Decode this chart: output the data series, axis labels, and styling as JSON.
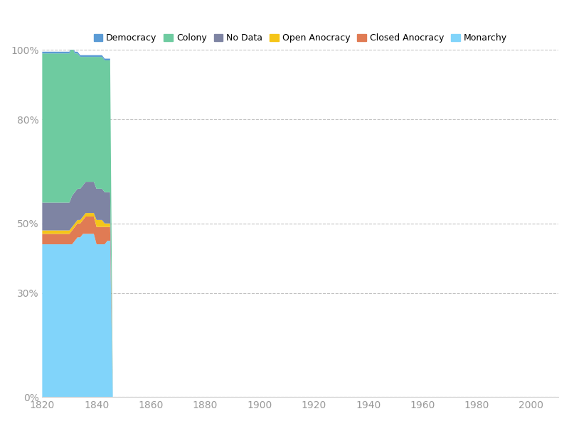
{
  "series": {
    "Democracy": {
      "color": "#5B9BD5",
      "values": [
        0.5,
        0.5,
        0.5,
        0.5,
        0.5,
        0.5,
        0.5,
        0.5,
        0.5,
        0.5,
        0.5,
        0.5,
        0.5,
        0.5,
        0.5,
        0.5,
        0.5,
        0.5,
        0.5,
        0.5,
        0.5,
        0.5,
        0.5,
        0.5,
        0.5,
        0.5
      ]
    },
    "Colony": {
      "color": "#6ECBA0",
      "values": [
        43,
        43,
        43,
        43,
        43,
        43,
        43,
        43,
        43,
        43,
        43,
        43,
        40,
        39,
        38,
        37,
        36,
        36,
        36,
        36,
        38,
        38,
        38,
        38,
        38,
        38
      ]
    },
    "No Data": {
      "color": "#7E84A3",
      "values": [
        8,
        8,
        8,
        8,
        8,
        8,
        8,
        8,
        8,
        8,
        8,
        9,
        9,
        9,
        9,
        9,
        9,
        9,
        9,
        9,
        9,
        9,
        9,
        9,
        9,
        9
      ]
    },
    "Open Anocracy": {
      "color": "#F5C518",
      "values": [
        1,
        1,
        1,
        1,
        1,
        1,
        1,
        1,
        1,
        1,
        1,
        1,
        1,
        1,
        1,
        1,
        1,
        1,
        1,
        1,
        2,
        2,
        2,
        1,
        1,
        1
      ]
    },
    "Closed Anocracy": {
      "color": "#E07B54",
      "values": [
        3,
        3,
        3,
        3,
        3,
        3,
        3,
        3,
        3,
        3,
        3,
        4,
        4,
        4,
        4,
        4,
        5,
        5,
        5,
        5,
        5,
        5,
        5,
        5,
        4,
        4
      ]
    },
    "Monarchy": {
      "color": "#81D4FA",
      "values": [
        44,
        44,
        44,
        44,
        44,
        44,
        44,
        44,
        44,
        44,
        44,
        44,
        45,
        46,
        46,
        47,
        47,
        47,
        47,
        47,
        44,
        44,
        44,
        44,
        45,
        45
      ]
    }
  },
  "stack_order": [
    "Monarchy",
    "Closed Anocracy",
    "Open Anocracy",
    "No Data",
    "Colony",
    "Democracy"
  ],
  "legend_order": [
    "Democracy",
    "Colony",
    "No Data",
    "Open Anocracy",
    "Closed Anocracy",
    "Monarchy"
  ],
  "year_start": 1820,
  "year_end_data": 1845,
  "xlim": [
    1820,
    2010
  ],
  "ylim": [
    0,
    100
  ],
  "yticks": [
    0,
    30,
    50,
    80,
    100
  ],
  "ytick_labels": [
    "0%",
    "30%",
    "50%",
    "80%",
    "100%"
  ],
  "xticks": [
    1820,
    1840,
    1860,
    1880,
    1900,
    1920,
    1940,
    1960,
    1980,
    2000
  ],
  "background_color": "#FFFFFF",
  "grid_color": "#BBBBBB",
  "text_color": "#999999"
}
